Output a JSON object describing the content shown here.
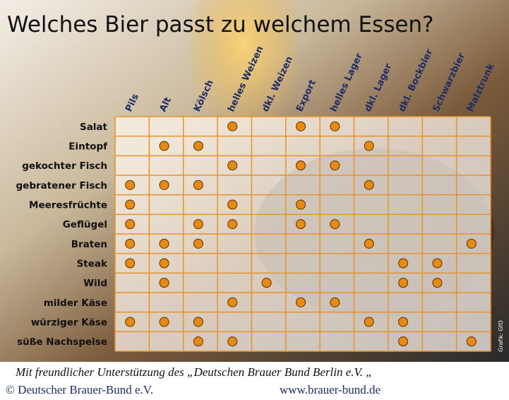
{
  "title": "Welches Bier passt zu welchem Essen?",
  "columns": [
    "Pils",
    "Alt",
    "Kölsch",
    "helles Weizen",
    "dkl. Weizen",
    "Export",
    "helles Lager",
    "dkl. Lager",
    "dkl. Bockbier",
    "Schwarzbier",
    "Malztrunk"
  ],
  "rows": [
    {
      "label": "Salat",
      "beers": [
        3,
        5,
        6
      ]
    },
    {
      "label": "Eintopf",
      "beers": [
        1,
        2,
        7
      ]
    },
    {
      "label": "gekochter Fisch",
      "beers": [
        3,
        5,
        6
      ]
    },
    {
      "label": "gebratener Fisch",
      "beers": [
        0,
        1,
        2,
        7
      ]
    },
    {
      "label": "Meeresfrüchte",
      "beers": [
        0,
        3,
        5
      ]
    },
    {
      "label": "Geflügel",
      "beers": [
        0,
        2,
        3,
        5,
        6
      ]
    },
    {
      "label": "Braten",
      "beers": [
        0,
        1,
        2,
        7,
        10
      ]
    },
    {
      "label": "Steak",
      "beers": [
        0,
        1,
        8,
        9
      ]
    },
    {
      "label": "Wild",
      "beers": [
        1,
        4,
        8,
        9
      ]
    },
    {
      "label": "milder Käse",
      "beers": [
        3,
        5,
        6
      ]
    },
    {
      "label": "würziger Käse",
      "beers": [
        0,
        1,
        2,
        7,
        8
      ]
    },
    {
      "label": "süße Nachspeise",
      "beers": [
        2,
        3,
        8,
        10
      ]
    }
  ],
  "footer": {
    "support": "Mit freundlicher Unterstützung des „Deutschen Brauer Bund Berlin e.V. „",
    "copyright": "© Deutscher Brauer-Bund e.V.",
    "website": "www.brauer-bund.de"
  },
  "credit": "Grafik: GfO"
}
